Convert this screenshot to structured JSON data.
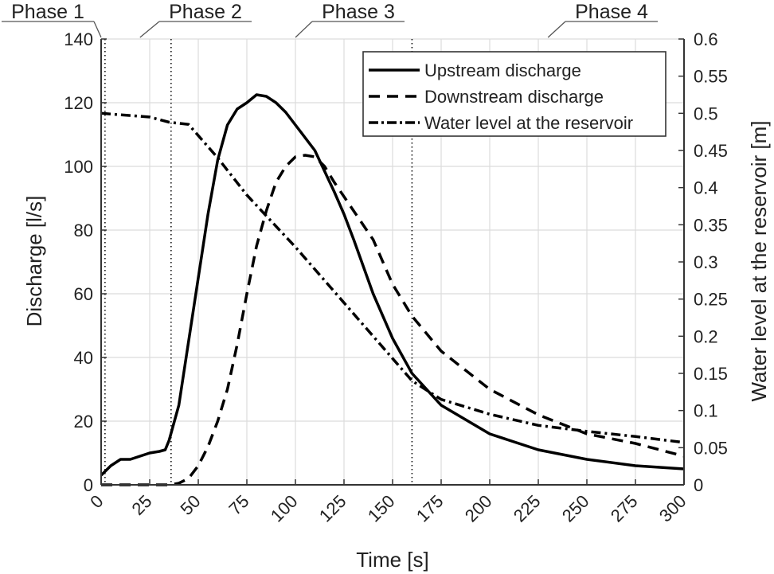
{
  "chart_data": {
    "type": "line",
    "xlabel": "Time [s]",
    "ylabel": "Discharge [l/s]",
    "y2label": "Water level at the reservoir [m]",
    "xlim": [
      0,
      300
    ],
    "ylim": [
      0,
      140
    ],
    "y2lim": [
      0,
      0.6
    ],
    "grid": true,
    "legend_position": "top-right",
    "xticks": [
      "0",
      "25",
      "50",
      "75",
      "100",
      "125",
      "150",
      "175",
      "200",
      "225",
      "250",
      "275",
      "300"
    ],
    "yticks": [
      "0",
      "20",
      "40",
      "60",
      "80",
      "100",
      "120",
      "140"
    ],
    "y2ticks": [
      "0",
      "0.05",
      "0.1",
      "0.15",
      "0.2",
      "0.25",
      "0.3",
      "0.35",
      "0.4",
      "0.45",
      "0.5",
      "0.55",
      "0.6"
    ],
    "phase_boundaries": [
      2,
      36,
      160
    ],
    "phases": [
      {
        "label": "Phase 1",
        "points_to": 0
      },
      {
        "label": "Phase 2",
        "points_to": 20
      },
      {
        "label": "Phase 3",
        "points_to": 100
      },
      {
        "label": "Phase 4",
        "points_to": 230
      }
    ],
    "series": [
      {
        "name": "Upstream discharge",
        "axis": "left",
        "style": "solid",
        "x": [
          0,
          5,
          10,
          15,
          25,
          30,
          33,
          35,
          40,
          45,
          50,
          55,
          60,
          65,
          70,
          75,
          80,
          85,
          90,
          95,
          100,
          110,
          120,
          125,
          130,
          140,
          150,
          160,
          175,
          200,
          225,
          250,
          275,
          300
        ],
        "y": [
          3,
          6,
          8,
          8,
          10,
          10.5,
          11,
          14,
          25,
          45,
          65,
          85,
          102,
          113,
          118,
          120,
          122.5,
          122,
          120,
          117,
          113,
          105,
          92,
          85,
          77,
          60,
          46,
          35,
          25,
          16,
          11,
          8,
          6,
          5
        ]
      },
      {
        "name": "Downstream discharge",
        "axis": "left",
        "style": "dashed",
        "x": [
          0,
          35,
          40,
          45,
          50,
          55,
          60,
          65,
          70,
          75,
          80,
          85,
          90,
          95,
          100,
          105,
          110,
          115,
          120,
          130,
          140,
          150,
          160,
          175,
          200,
          225,
          250,
          275,
          300
        ],
        "y": [
          0,
          0,
          0.5,
          2,
          6,
          12,
          20,
          30,
          44,
          60,
          75,
          86,
          95,
          100,
          103,
          103.5,
          103,
          100,
          95,
          86,
          77,
          63,
          53,
          42,
          30,
          22,
          16,
          13,
          9
        ]
      },
      {
        "name": "Water level at the reservoir",
        "axis": "right",
        "style": "dash-dot",
        "x": [
          0,
          25,
          35,
          45,
          50,
          60,
          75,
          100,
          125,
          150,
          160,
          175,
          200,
          225,
          250,
          275,
          300
        ],
        "y": [
          0.5,
          0.495,
          0.488,
          0.485,
          0.47,
          0.44,
          0.39,
          0.32,
          0.245,
          0.17,
          0.14,
          0.115,
          0.095,
          0.08,
          0.072,
          0.065,
          0.057
        ]
      }
    ]
  }
}
